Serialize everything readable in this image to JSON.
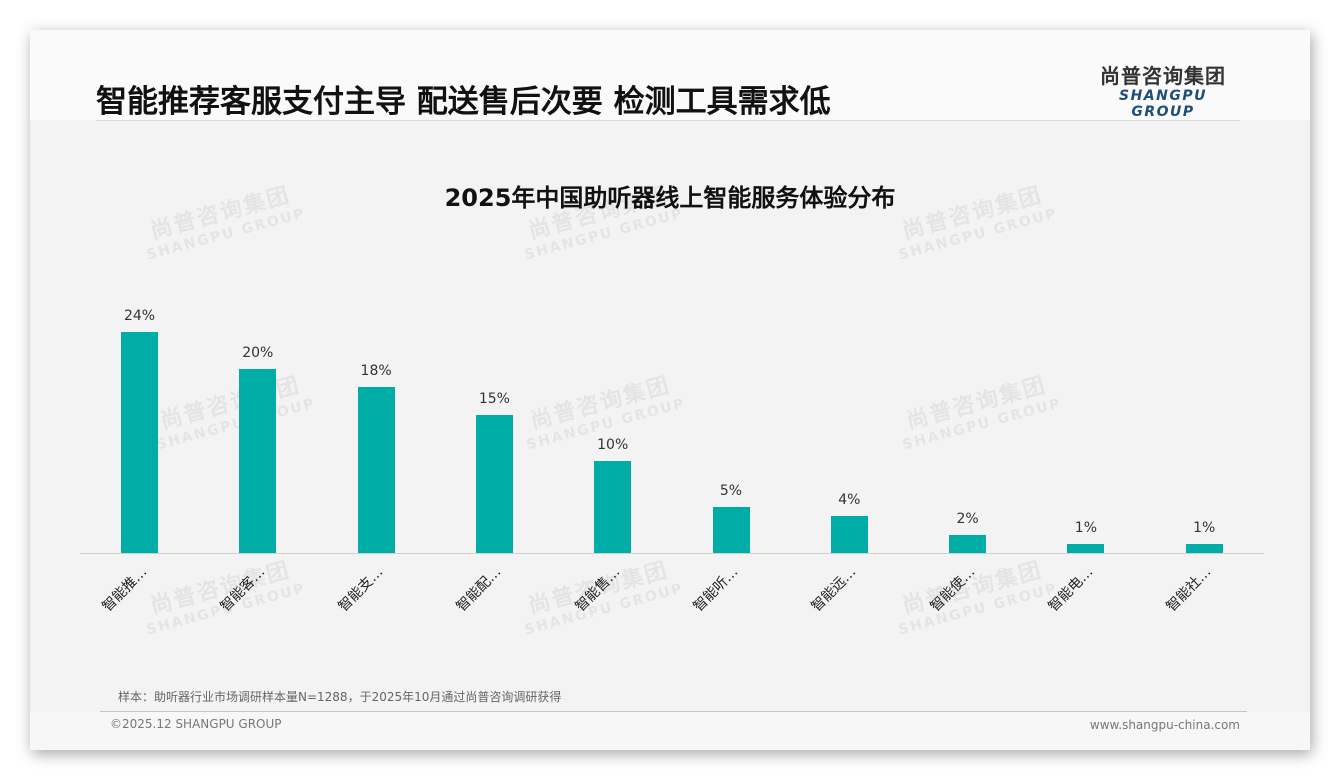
{
  "slide": {
    "headline": "智能推荐客服支付主导 配送售后次要 检测工具需求低",
    "logo": {
      "cn": "尚普咨询集团",
      "en": "SHANGPU GROUP"
    },
    "watermark": {
      "cn": "尚普咨询集团",
      "en": "SHANGPU GROUP"
    },
    "sample_note": "样本：助听器行业市场调研样本量N=1288，于2025年10月通过尚普咨询调研获得",
    "copyright": "©2025.12 SHANGPU GROUP",
    "website": "www.shangpu-china.com"
  },
  "colors": {
    "bar": "#00ada6",
    "logo_en": "#1f4e79"
  },
  "chart_data": {
    "type": "bar",
    "title": "2025年中国助听器线上智能服务体验分布",
    "categories": [
      "智能推…",
      "智能客…",
      "智能支…",
      "智能配…",
      "智能售…",
      "智能听…",
      "智能远…",
      "智能使…",
      "智能电…",
      "智能社…"
    ],
    "values": [
      24,
      20,
      18,
      15,
      10,
      5,
      4,
      2,
      1,
      1
    ],
    "value_labels": [
      "24%",
      "20%",
      "18%",
      "15%",
      "10%",
      "5%",
      "4%",
      "2%",
      "1%",
      "1%"
    ],
    "xlabel": "",
    "ylabel": "",
    "unit": "%",
    "grid": false,
    "legend": "none"
  }
}
